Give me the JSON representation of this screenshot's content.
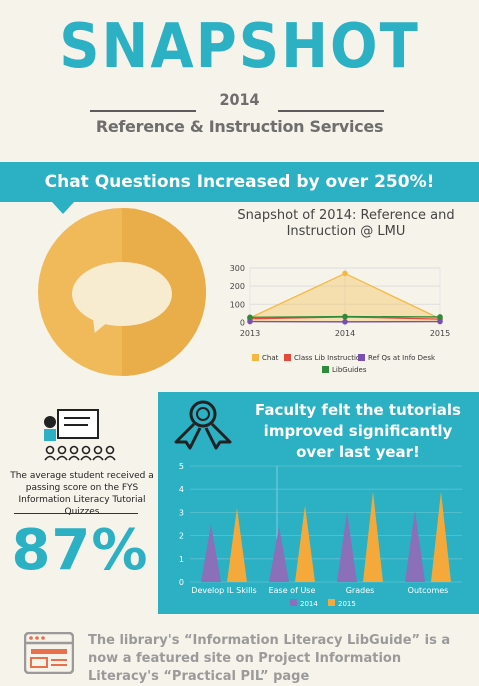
{
  "header": {
    "title": "SNAPSHOT",
    "year": "2014",
    "subtitle": "Reference & Instruction Services"
  },
  "banner": {
    "text": "Chat Questions Increased by over 250%!"
  },
  "panel": {
    "title": "Faculty felt the tutorials improved significantly over last year!"
  },
  "left_stat": {
    "text": "The average student received a passing score on the FYS Information Literacy Tutorial Quizzes",
    "value": "87%"
  },
  "footer": {
    "text": "The library's “Information Literacy LibGuide” is a now a featured site on Project Information Literacy's “Practical PIL” page"
  },
  "chart_data": [
    {
      "type": "area",
      "title": "Snapshot of 2014: Reference and Instruction @ LMU",
      "x": [
        "2013",
        "2014",
        "2015"
      ],
      "ylim": [
        -20,
        300
      ],
      "yticks": [
        0,
        100,
        200,
        300
      ],
      "grid": true,
      "legend_position": "bottom",
      "series": [
        {
          "name": "Chat",
          "color": "#f5b942",
          "values": [
            25,
            270,
            20
          ]
        },
        {
          "name": "Class Lib Instruction",
          "color": "#e8483a",
          "values": [
            20,
            30,
            18
          ]
        },
        {
          "name": "Ref Qs at Info Desk",
          "color": "#7a4fb0",
          "values": [
            5,
            3,
            5
          ]
        },
        {
          "name": "LibGuides",
          "color": "#2e8b3a",
          "values": [
            28,
            32,
            30
          ]
        }
      ]
    },
    {
      "type": "bar",
      "categories": [
        "Develop IL Skills",
        "Ease of Use",
        "Grades",
        "Outcomes"
      ],
      "ylim": [
        0,
        5
      ],
      "yticks": [
        0,
        1,
        2,
        3,
        4,
        5
      ],
      "legend_position": "bottom",
      "series": [
        {
          "name": "2014",
          "color": "#8b6fb8",
          "values": [
            2.5,
            2.4,
            3.0,
            3.1
          ]
        },
        {
          "name": "2015",
          "color": "#f4a93a",
          "values": [
            3.2,
            3.3,
            3.9,
            3.9
          ]
        }
      ]
    }
  ]
}
